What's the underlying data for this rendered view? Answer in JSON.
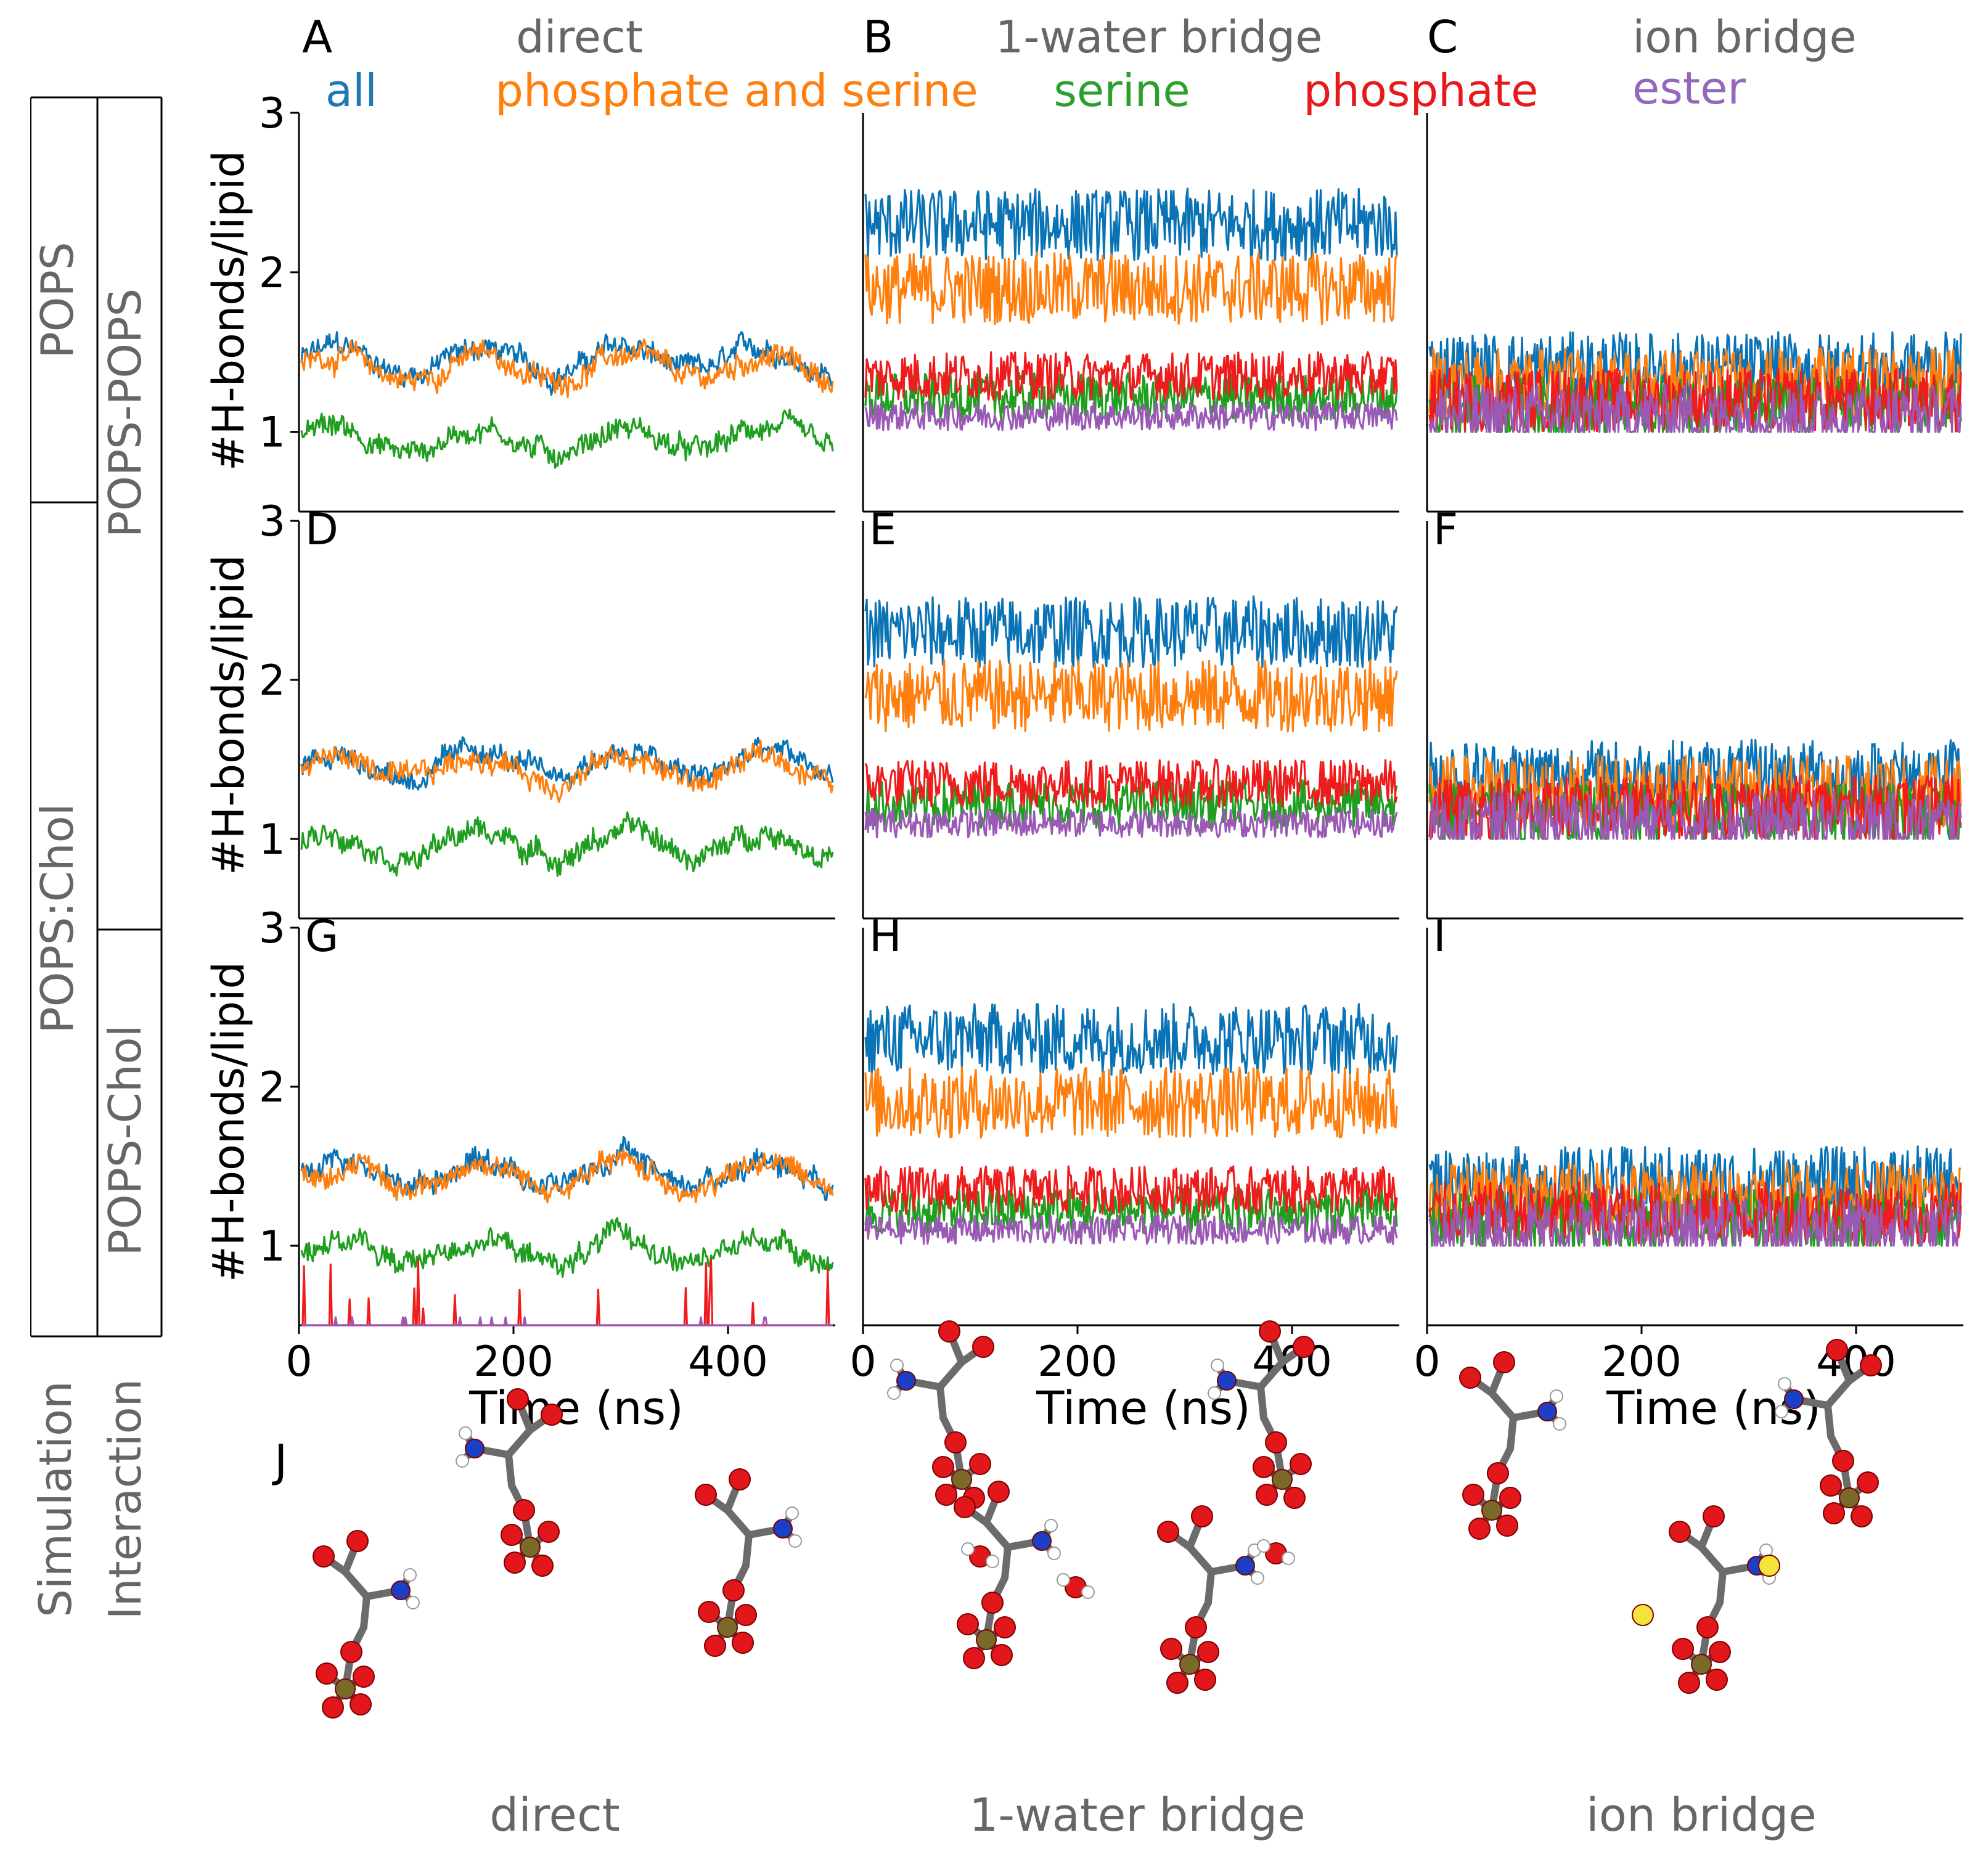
{
  "chart_data": {
    "type": "line",
    "columns": [
      {
        "letter_top": "A",
        "header": "direct"
      },
      {
        "letter_top": "B",
        "header": "1-water bridge"
      },
      {
        "letter_top": "C",
        "header": "ion bridge"
      }
    ],
    "legend": [
      {
        "name": "all",
        "color": "#1f77b4"
      },
      {
        "name": "phosphate and serine",
        "color": "#ff7f0e"
      },
      {
        "name": "serine",
        "color": "#2ca02c"
      },
      {
        "name": "phosphate",
        "color": "#e8191b"
      },
      {
        "name": "ester",
        "color": "#9467bd"
      }
    ],
    "colors": {
      "all": "#0a73b5",
      "phosphate and serine": "#ff7f0e",
      "serine": "#1f9e1f",
      "phosphate": "#ee1c1c",
      "ester": "#9b59b6"
    },
    "ylabel": "#H-bonds/lipid",
    "xlabel": "Time (ns)",
    "xlim": [
      0,
      500
    ],
    "ylim": [
      0.5,
      3
    ],
    "yticks": [
      "1",
      "2",
      "3"
    ],
    "xticks": [
      "0",
      "200",
      "400"
    ],
    "left_labels": {
      "simulation_header": "Simulation",
      "interaction_header": "Interaction",
      "sim_groups": [
        "POPS",
        "POPS:Chol"
      ],
      "int_groups": [
        "POPS-POPS",
        "POPS-Chol"
      ]
    },
    "panels": [
      {
        "letter": "A",
        "row": 0,
        "col": 0,
        "series": {
          "all": 1.45,
          "phosphate and serine": 1.4,
          "serine": 0.95
        }
      },
      {
        "letter": "B",
        "row": 0,
        "col": 1,
        "series": {
          "all": 2.3,
          "phosphate and serine": 1.9,
          "phosphate": 1.35,
          "serine": 1.22,
          "ester": 1.1
        }
      },
      {
        "letter": "C",
        "row": 0,
        "col": 2,
        "series": {
          "all": 1.4,
          "phosphate and serine": 1.3,
          "phosphate": 1.2,
          "serine": 1.15,
          "ester": 1.1
        }
      },
      {
        "letter": "D",
        "row": 1,
        "col": 0,
        "series": {
          "all": 1.47,
          "phosphate and serine": 1.44,
          "serine": 0.97
        }
      },
      {
        "letter": "E",
        "row": 1,
        "col": 1,
        "series": {
          "all": 2.3,
          "phosphate and serine": 1.9,
          "phosphate": 1.35,
          "serine": 1.22,
          "ester": 1.1
        }
      },
      {
        "letter": "F",
        "row": 1,
        "col": 2,
        "series": {
          "all": 1.4,
          "phosphate and serine": 1.3,
          "phosphate": 1.2,
          "serine": 1.15,
          "ester": 1.1
        }
      },
      {
        "letter": "G",
        "row": 2,
        "col": 0,
        "series": {
          "all": 1.47,
          "phosphate and serine": 1.44,
          "serine": 0.97,
          "phosphate": 0.5,
          "ester": 0.5
        }
      },
      {
        "letter": "H",
        "row": 2,
        "col": 1,
        "series": {
          "all": 2.3,
          "phosphate and serine": 1.9,
          "phosphate": 1.35,
          "serine": 1.22,
          "ester": 1.1
        }
      },
      {
        "letter": "I",
        "row": 2,
        "col": 2,
        "series": {
          "all": 1.4,
          "phosphate and serine": 1.3,
          "phosphate": 1.2,
          "serine": 1.15,
          "ester": 1.1
        }
      }
    ],
    "structures": {
      "letter": "J",
      "labels": [
        "direct",
        "1-water bridge",
        "ion bridge"
      ]
    }
  }
}
